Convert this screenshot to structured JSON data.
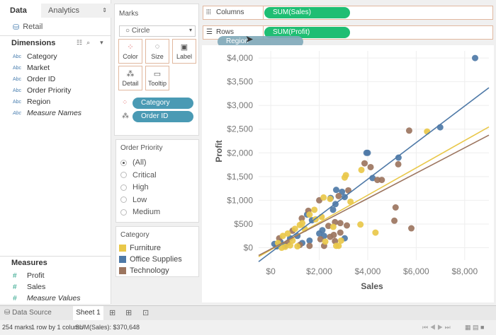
{
  "data_pane": {
    "tabs": [
      "Data",
      "Analytics"
    ],
    "datasource": "Retail",
    "dimensions_label": "Dimensions",
    "dimensions": [
      "Category",
      "Market",
      "Order ID",
      "Order Priority",
      "Region",
      "Measure Names"
    ],
    "measures_label": "Measures",
    "measures": [
      "Profit",
      "Sales",
      "Measure Values"
    ],
    "abc": "Abc"
  },
  "marks": {
    "title": "Marks",
    "type": "Circle",
    "buttons": [
      "Color",
      "Size",
      "Label",
      "Detail",
      "Tooltip"
    ],
    "pills": [
      "Category",
      "Order ID"
    ]
  },
  "filter": {
    "title": "Order Priority",
    "options": [
      "(All)",
      "Critical",
      "High",
      "Low",
      "Medium"
    ],
    "selected": "(All)"
  },
  "legend": {
    "title": "Category",
    "items": [
      {
        "name": "Furniture",
        "color": "#e9c84a"
      },
      {
        "name": "Office Supplies",
        "color": "#4e79a7"
      },
      {
        "name": "Technology",
        "color": "#9c755f"
      }
    ]
  },
  "shelves": {
    "columns_label": "Columns",
    "columns_pill": "SUM(Sales)",
    "rows_label": "Rows",
    "rows_pill": "SUM(Profit)",
    "dragging_pill": "Region"
  },
  "bottom": {
    "data_source": "Data Source",
    "sheet": "Sheet 1"
  },
  "status": {
    "marks": "254 marks",
    "dims": "1 row by 1 column",
    "sum": "SUM(Sales): $370,648"
  },
  "colors": {
    "pill_green": "#1fbe73",
    "pill_blue": "#4a9ab4"
  },
  "chart_data": {
    "type": "scatter",
    "xlabel": "Sales",
    "ylabel": "Profit",
    "xlim": [
      -500,
      9000
    ],
    "ylim": [
      -260,
      4150
    ],
    "xticks": [
      "$0",
      "$2,000",
      "$4,000",
      "$6,000",
      "$8,000"
    ],
    "xtick_values": [
      0,
      2000,
      4000,
      6000,
      8000
    ],
    "yticks": [
      "$0",
      "$500",
      "$1,000",
      "$1,500",
      "$2,000",
      "$2,500",
      "$3,000",
      "$3,500",
      "$4,000"
    ],
    "ytick_values": [
      0,
      500,
      1000,
      1500,
      2000,
      2500,
      3000,
      3500,
      4000
    ],
    "grid": true,
    "trend_lines": [
      {
        "series": "Office Supplies",
        "slope": 0.386,
        "intercept": -100
      },
      {
        "series": "Furniture",
        "slope": 0.288,
        "intercept": -44
      },
      {
        "series": "Technology",
        "slope": 0.267,
        "intercept": -29
      }
    ],
    "series": [
      {
        "name": "Office Supplies",
        "points": [
          [
            8430,
            4000
          ],
          [
            6990,
            2540
          ],
          [
            5270,
            1900
          ],
          [
            4000,
            2000
          ],
          [
            3950,
            2000
          ],
          [
            4200,
            1470
          ],
          [
            2700,
            1220
          ],
          [
            2940,
            1180
          ],
          [
            3050,
            1070
          ],
          [
            2670,
            920
          ],
          [
            2470,
            1050
          ],
          [
            1500,
            700
          ],
          [
            2130,
            370
          ],
          [
            2200,
            250
          ],
          [
            3050,
            200
          ],
          [
            2570,
            800
          ],
          [
            1700,
            580
          ],
          [
            1600,
            150
          ],
          [
            2000,
            300
          ],
          [
            150,
            80
          ],
          [
            400,
            120
          ],
          [
            800,
            200
          ],
          [
            1100,
            250
          ],
          [
            600,
            50
          ],
          [
            1300,
            100
          ],
          [
            250,
            30
          ]
        ]
      },
      {
        "name": "Technology",
        "points": [
          [
            5710,
            2470
          ],
          [
            5260,
            1760
          ],
          [
            3870,
            1780
          ],
          [
            4120,
            1700
          ],
          [
            4400,
            1430
          ],
          [
            4580,
            1430
          ],
          [
            3200,
            1210
          ],
          [
            2800,
            1090
          ],
          [
            5150,
            850
          ],
          [
            5100,
            570
          ],
          [
            5800,
            410
          ],
          [
            2000,
            1000
          ],
          [
            1550,
            780
          ],
          [
            1280,
            620
          ],
          [
            2870,
            520
          ],
          [
            2650,
            540
          ],
          [
            3140,
            470
          ],
          [
            2870,
            320
          ],
          [
            2380,
            460
          ],
          [
            2600,
            270
          ],
          [
            2200,
            40
          ],
          [
            1600,
            40
          ],
          [
            2650,
            140
          ],
          [
            2450,
            230
          ],
          [
            2050,
            180
          ],
          [
            900,
            360
          ],
          [
            350,
            200
          ],
          [
            700,
            100
          ],
          [
            1200,
            60
          ]
        ]
      },
      {
        "name": "Furniture",
        "points": [
          [
            6450,
            2450
          ],
          [
            3740,
            1640
          ],
          [
            3100,
            1530
          ],
          [
            3050,
            1480
          ],
          [
            3290,
            970
          ],
          [
            2180,
            1060
          ],
          [
            2450,
            1030
          ],
          [
            3700,
            490
          ],
          [
            4320,
            320
          ],
          [
            2580,
            440
          ],
          [
            2700,
            40
          ],
          [
            2800,
            40
          ],
          [
            2900,
            150
          ],
          [
            2250,
            130
          ],
          [
            1800,
            800
          ],
          [
            1200,
            480
          ],
          [
            1400,
            400
          ],
          [
            1850,
            600
          ],
          [
            1100,
            30
          ],
          [
            600,
            20
          ],
          [
            500,
            250
          ],
          [
            700,
            300
          ],
          [
            900,
            150
          ],
          [
            1000,
            400
          ],
          [
            1300,
            520
          ],
          [
            300,
            100
          ],
          [
            450,
            0
          ],
          [
            800,
            50
          ],
          [
            1600,
            700
          ],
          [
            2100,
            650
          ]
        ]
      }
    ]
  }
}
